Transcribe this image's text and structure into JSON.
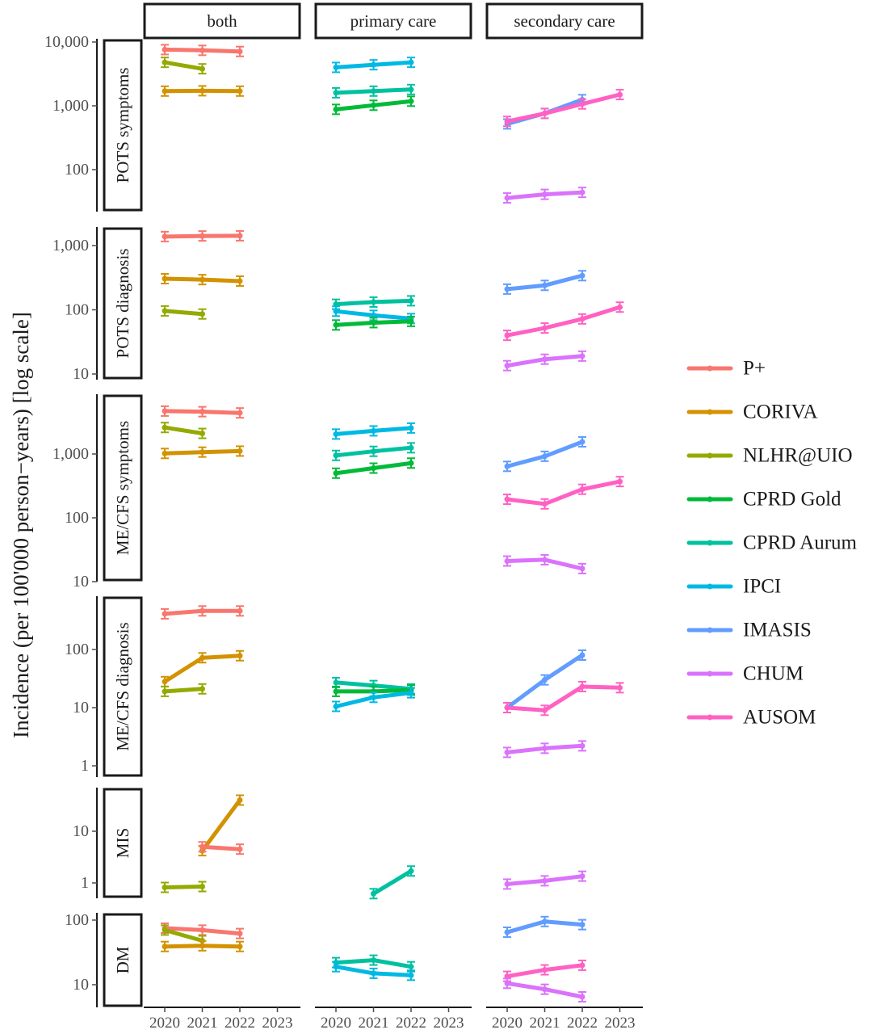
{
  "chart_data": {
    "type": "line",
    "ylabel": "Incidence (per 100'000 person−years)  [log scale]",
    "x_ticks": [
      "2020",
      "2021",
      "2022",
      "2023"
    ],
    "columns": [
      "both",
      "primary care",
      "secondary care"
    ],
    "rows": [
      "POTS symptoms",
      "POTS diagnosis",
      "ME/CFS symptoms",
      "ME/CFS diagnosis",
      "MIS",
      "DM"
    ],
    "row_ticks": [
      [
        {
          "v": 100,
          "label": "100"
        },
        {
          "v": 1000,
          "label": "1,000"
        },
        {
          "v": 10000,
          "label": "10,000"
        }
      ],
      [
        {
          "v": 10,
          "label": "10"
        },
        {
          "v": 100,
          "label": "100"
        },
        {
          "v": 1000,
          "label": "1,000"
        }
      ],
      [
        {
          "v": 10,
          "label": "10"
        },
        {
          "v": 100,
          "label": "100"
        },
        {
          "v": 1000,
          "label": "1,000"
        }
      ],
      [
        {
          "v": 1,
          "label": "1"
        },
        {
          "v": 10,
          "label": "10"
        },
        {
          "v": 100,
          "label": "100"
        }
      ],
      [
        {
          "v": 1,
          "label": "1"
        },
        {
          "v": 10,
          "label": "10"
        }
      ],
      [
        {
          "v": 10,
          "label": "10"
        },
        {
          "v": 100,
          "label": "100"
        }
      ]
    ],
    "series": [
      {
        "name": "P+",
        "color": "#F8766D"
      },
      {
        "name": "CORIVA",
        "color": "#D39200"
      },
      {
        "name": "NLHR@UIO",
        "color": "#93AA00"
      },
      {
        "name": "CPRD Gold",
        "color": "#00BA38"
      },
      {
        "name": "CPRD Aurum",
        "color": "#00C19F"
      },
      {
        "name": "IPCI",
        "color": "#00B9E3"
      },
      {
        "name": "IMASIS",
        "color": "#619CFF"
      },
      {
        "name": "CHUM",
        "color": "#DB72FB"
      },
      {
        "name": "AUSOM",
        "color": "#FF61C3"
      }
    ],
    "lines": [
      {
        "row": 0,
        "col": 0,
        "series": 0,
        "x": [
          2020,
          2021,
          2022
        ],
        "y": [
          7600,
          7400,
          7100
        ]
      },
      {
        "row": 0,
        "col": 0,
        "series": 2,
        "x": [
          2020,
          2021
        ],
        "y": [
          4800,
          3800
        ]
      },
      {
        "row": 0,
        "col": 0,
        "series": 1,
        "x": [
          2020,
          2021,
          2022
        ],
        "y": [
          1700,
          1720,
          1700
        ]
      },
      {
        "row": 0,
        "col": 1,
        "series": 5,
        "x": [
          2020,
          2021,
          2022
        ],
        "y": [
          4000,
          4400,
          4800
        ]
      },
      {
        "row": 0,
        "col": 1,
        "series": 4,
        "x": [
          2020,
          2021,
          2022
        ],
        "y": [
          1600,
          1700,
          1800
        ]
      },
      {
        "row": 0,
        "col": 1,
        "series": 3,
        "x": [
          2020,
          2021,
          2022
        ],
        "y": [
          880,
          1020,
          1180
        ]
      },
      {
        "row": 0,
        "col": 2,
        "series": 6,
        "x": [
          2020,
          2021,
          2022
        ],
        "y": [
          520,
          760,
          1250
        ]
      },
      {
        "row": 0,
        "col": 2,
        "series": 8,
        "x": [
          2020,
          2021,
          2022,
          2023
        ],
        "y": [
          570,
          760,
          1070,
          1500
        ]
      },
      {
        "row": 0,
        "col": 2,
        "series": 7,
        "x": [
          2020,
          2021,
          2022
        ],
        "y": [
          36,
          41,
          44
        ]
      },
      {
        "row": 1,
        "col": 0,
        "series": 0,
        "x": [
          2020,
          2021,
          2022
        ],
        "y": [
          1380,
          1410,
          1420
        ]
      },
      {
        "row": 1,
        "col": 0,
        "series": 1,
        "x": [
          2020,
          2021,
          2022
        ],
        "y": [
          305,
          295,
          280
        ]
      },
      {
        "row": 1,
        "col": 0,
        "series": 2,
        "x": [
          2020,
          2021
        ],
        "y": [
          96,
          86
        ]
      },
      {
        "row": 1,
        "col": 1,
        "series": 4,
        "x": [
          2020,
          2021,
          2022
        ],
        "y": [
          122,
          132,
          138
        ]
      },
      {
        "row": 1,
        "col": 1,
        "series": 5,
        "x": [
          2020,
          2021,
          2022
        ],
        "y": [
          95,
          82,
          73
        ]
      },
      {
        "row": 1,
        "col": 1,
        "series": 3,
        "x": [
          2020,
          2021,
          2022
        ],
        "y": [
          58,
          63,
          66
        ]
      },
      {
        "row": 1,
        "col": 2,
        "series": 6,
        "x": [
          2020,
          2021,
          2022
        ],
        "y": [
          210,
          240,
          340
        ]
      },
      {
        "row": 1,
        "col": 2,
        "series": 8,
        "x": [
          2020,
          2021,
          2022,
          2023
        ],
        "y": [
          40,
          52,
          72,
          110
        ]
      },
      {
        "row": 1,
        "col": 2,
        "series": 7,
        "x": [
          2020,
          2021,
          2022
        ],
        "y": [
          13.5,
          17,
          19
        ]
      },
      {
        "row": 2,
        "col": 0,
        "series": 0,
        "x": [
          2020,
          2021,
          2022
        ],
        "y": [
          4700,
          4600,
          4400
        ]
      },
      {
        "row": 2,
        "col": 0,
        "series": 2,
        "x": [
          2020,
          2021
        ],
        "y": [
          2600,
          2100
        ]
      },
      {
        "row": 2,
        "col": 0,
        "series": 1,
        "x": [
          2020,
          2021,
          2022
        ],
        "y": [
          1020,
          1070,
          1110
        ]
      },
      {
        "row": 2,
        "col": 1,
        "series": 5,
        "x": [
          2020,
          2021,
          2022
        ],
        "y": [
          2050,
          2300,
          2550
        ]
      },
      {
        "row": 2,
        "col": 1,
        "series": 4,
        "x": [
          2020,
          2021,
          2022
        ],
        "y": [
          950,
          1100,
          1250
        ]
      },
      {
        "row": 2,
        "col": 1,
        "series": 3,
        "x": [
          2020,
          2021,
          2022
        ],
        "y": [
          500,
          600,
          720
        ]
      },
      {
        "row": 2,
        "col": 2,
        "series": 6,
        "x": [
          2020,
          2021,
          2022
        ],
        "y": [
          640,
          920,
          1550
        ]
      },
      {
        "row": 2,
        "col": 2,
        "series": 8,
        "x": [
          2020,
          2021,
          2022,
          2023
        ],
        "y": [
          195,
          165,
          280,
          370
        ]
      },
      {
        "row": 2,
        "col": 2,
        "series": 7,
        "x": [
          2020,
          2021,
          2022
        ],
        "y": [
          21,
          22,
          16
        ]
      },
      {
        "row": 3,
        "col": 0,
        "series": 0,
        "x": [
          2020,
          2021,
          2022
        ],
        "y": [
          410,
          460,
          460
        ]
      },
      {
        "row": 3,
        "col": 0,
        "series": 1,
        "x": [
          2020,
          2021,
          2022
        ],
        "y": [
          28,
          72,
          78
        ]
      },
      {
        "row": 3,
        "col": 0,
        "series": 2,
        "x": [
          2020,
          2021
        ],
        "y": [
          19,
          21
        ]
      },
      {
        "row": 3,
        "col": 1,
        "series": 4,
        "x": [
          2020,
          2021,
          2022
        ],
        "y": [
          27,
          24,
          21
        ]
      },
      {
        "row": 3,
        "col": 1,
        "series": 3,
        "x": [
          2020,
          2021,
          2022
        ],
        "y": [
          19,
          19,
          20
        ]
      },
      {
        "row": 3,
        "col": 1,
        "series": 5,
        "x": [
          2020,
          2021,
          2022
        ],
        "y": [
          10.5,
          15,
          18
        ]
      },
      {
        "row": 3,
        "col": 2,
        "series": 6,
        "x": [
          2020,
          2021,
          2022
        ],
        "y": [
          10,
          30,
          80
        ]
      },
      {
        "row": 3,
        "col": 2,
        "series": 8,
        "x": [
          2020,
          2021,
          2022,
          2023
        ],
        "y": [
          10,
          9,
          23,
          22
        ]
      },
      {
        "row": 3,
        "col": 2,
        "series": 7,
        "x": [
          2020,
          2021,
          2022
        ],
        "y": [
          1.7,
          2.0,
          2.2
        ]
      },
      {
        "row": 4,
        "col": 0,
        "series": 1,
        "x": [
          2021,
          2022
        ],
        "y": [
          4.2,
          40
        ]
      },
      {
        "row": 4,
        "col": 0,
        "series": 0,
        "x": [
          2021,
          2022
        ],
        "y": [
          5,
          4.5
        ]
      },
      {
        "row": 4,
        "col": 0,
        "series": 2,
        "x": [
          2020,
          2021
        ],
        "y": [
          0.82,
          0.85
        ]
      },
      {
        "row": 4,
        "col": 1,
        "series": 4,
        "x": [
          2021,
          2022
        ],
        "y": [
          0.62,
          1.7
        ]
      },
      {
        "row": 4,
        "col": 2,
        "series": 7,
        "x": [
          2020,
          2021,
          2022
        ],
        "y": [
          0.95,
          1.1,
          1.35
        ]
      },
      {
        "row": 5,
        "col": 0,
        "series": 0,
        "x": [
          2020,
          2021,
          2022
        ],
        "y": [
          75,
          70,
          62
        ]
      },
      {
        "row": 5,
        "col": 0,
        "series": 2,
        "x": [
          2020,
          2021
        ],
        "y": [
          70,
          48
        ]
      },
      {
        "row": 5,
        "col": 0,
        "series": 1,
        "x": [
          2020,
          2021,
          2022
        ],
        "y": [
          39,
          40,
          39
        ]
      },
      {
        "row": 5,
        "col": 1,
        "series": 4,
        "x": [
          2020,
          2021,
          2022
        ],
        "y": [
          22,
          24,
          19
        ]
      },
      {
        "row": 5,
        "col": 1,
        "series": 5,
        "x": [
          2020,
          2021,
          2022
        ],
        "y": [
          19,
          15,
          14
        ]
      },
      {
        "row": 5,
        "col": 2,
        "series": 6,
        "x": [
          2020,
          2021,
          2022
        ],
        "y": [
          65,
          95,
          85
        ]
      },
      {
        "row": 5,
        "col": 2,
        "series": 8,
        "x": [
          2020,
          2021,
          2022
        ],
        "y": [
          13.5,
          17,
          20
        ]
      },
      {
        "row": 5,
        "col": 2,
        "series": 7,
        "x": [
          2020,
          2021,
          2022
        ],
        "y": [
          10.5,
          8.5,
          6.5
        ]
      }
    ]
  }
}
